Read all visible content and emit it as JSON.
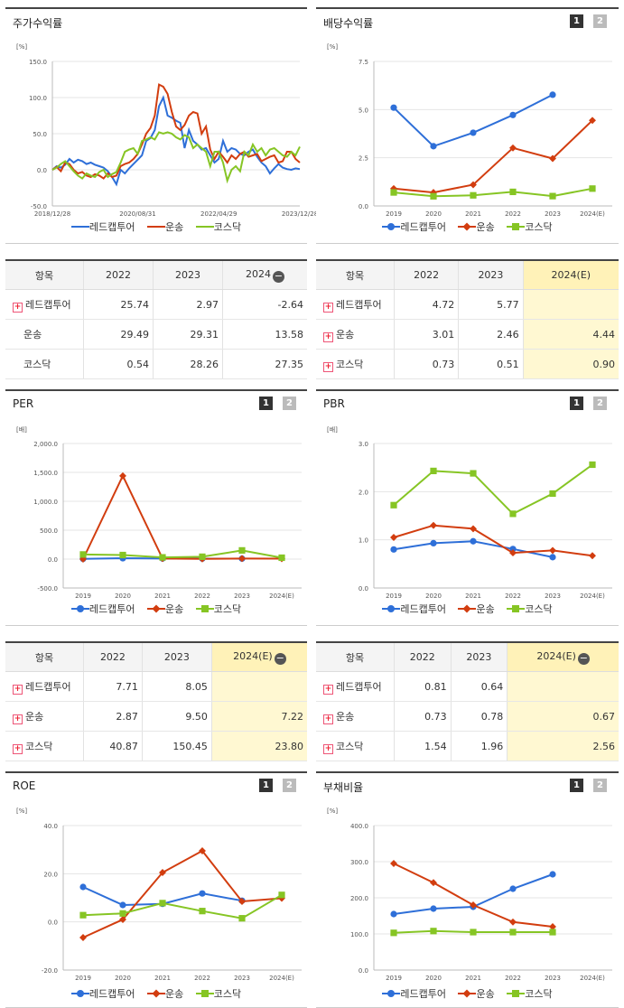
{
  "legend": {
    "red_cap": "레드캡투어",
    "transport": "운송",
    "kosdaq": "코스닥"
  },
  "colors": {
    "red_cap": "#2e6fd8",
    "transport": "#d23d0f",
    "kosdaq": "#86c524"
  },
  "stock_return": {
    "title": "주가수익률",
    "unit": "[%]",
    "chart_data": {
      "type": "line",
      "title": "주가수익률",
      "ylim": [
        -50,
        150
      ],
      "yticks": [
        "150.0",
        "100.0",
        "50.0",
        "0.0",
        "-50.0"
      ],
      "xticks": [
        "2018/12/28",
        "2020/08/31",
        "2022/04/29",
        "2023/12/28"
      ],
      "x_range": [
        "2018/12/28",
        "2023/12/28"
      ],
      "series": [
        {
          "key": "red_cap",
          "name": "레드캡투어",
          "values": [
            0,
            5,
            3,
            7,
            15,
            10,
            14,
            12,
            8,
            10,
            7,
            5,
            3,
            -2,
            -10,
            -20,
            0,
            -5,
            2,
            8,
            14,
            20,
            40,
            44,
            55,
            88,
            100,
            75,
            72,
            68,
            65,
            30,
            55,
            40,
            35,
            28,
            30,
            20,
            10,
            15,
            40,
            25,
            30,
            28,
            22,
            20,
            25,
            28,
            18,
            10,
            5,
            -5,
            2,
            8,
            3,
            1,
            0,
            2,
            1
          ]
        },
        {
          "key": "transport",
          "name": "운송",
          "values": [
            0,
            4,
            -2,
            10,
            8,
            0,
            -5,
            -3,
            -8,
            -10,
            -6,
            -8,
            -12,
            -5,
            -10,
            -8,
            5,
            8,
            10,
            15,
            22,
            35,
            50,
            58,
            75,
            118,
            115,
            105,
            80,
            60,
            55,
            62,
            75,
            80,
            78,
            50,
            60,
            28,
            15,
            25,
            18,
            10,
            20,
            15,
            22,
            25,
            18,
            20,
            22,
            12,
            15,
            18,
            20,
            10,
            12,
            25,
            25,
            15,
            10
          ]
        },
        {
          "key": "kosdaq",
          "name": "코스닥",
          "values": [
            0,
            3,
            8,
            12,
            5,
            -2,
            -8,
            -12,
            -5,
            -8,
            -10,
            -3,
            0,
            -10,
            -6,
            -3,
            10,
            25,
            28,
            30,
            22,
            40,
            42,
            45,
            42,
            52,
            50,
            52,
            50,
            45,
            42,
            48,
            45,
            30,
            35,
            30,
            25,
            5,
            25,
            25,
            10,
            -15,
            0,
            5,
            -2,
            25,
            20,
            35,
            25,
            30,
            20,
            28,
            30,
            25,
            20,
            18,
            25,
            20,
            32
          ]
        }
      ]
    }
  },
  "dividend": {
    "title": "배당수익률",
    "unit": "[%]",
    "page1": "1",
    "page2": "2",
    "chart_data": {
      "type": "line",
      "title": "배당수익률",
      "ylim": [
        0,
        7.5
      ],
      "yticks": [
        "7.5",
        "5.0",
        "2.5",
        "0.0"
      ],
      "categories": [
        "2019",
        "2020",
        "2021",
        "2022",
        "2023",
        "2024(E)"
      ],
      "series": [
        {
          "key": "red_cap",
          "name": "레드캡투어",
          "values": [
            5.1,
            3.1,
            3.8,
            4.72,
            5.77,
            null
          ]
        },
        {
          "key": "transport",
          "name": "운송",
          "values": [
            0.9,
            0.7,
            1.1,
            3.01,
            2.46,
            4.44
          ]
        },
        {
          "key": "kosdaq",
          "name": "코스닥",
          "values": [
            0.7,
            0.5,
            0.55,
            0.73,
            0.51,
            0.9
          ]
        }
      ]
    }
  },
  "table_stock": {
    "header": [
      "항목",
      "2022",
      "2023",
      "2024"
    ],
    "rows": [
      {
        "label": "레드캡투어",
        "plus": true,
        "values": [
          "25.74",
          "2.97",
          "-2.64"
        ]
      },
      {
        "label": "운송",
        "plus": false,
        "values": [
          "29.49",
          "29.31",
          "13.58"
        ]
      },
      {
        "label": "코스닥",
        "plus": false,
        "values": [
          "0.54",
          "28.26",
          "27.35"
        ]
      }
    ]
  },
  "table_dividend": {
    "header": [
      "항목",
      "2022",
      "2023",
      "2024(E)"
    ],
    "rows": [
      {
        "label": "레드캡투어",
        "plus": true,
        "values": [
          "4.72",
          "5.77",
          ""
        ]
      },
      {
        "label": "운송",
        "plus": true,
        "values": [
          "3.01",
          "2.46",
          "4.44"
        ]
      },
      {
        "label": "코스닥",
        "plus": true,
        "values": [
          "0.73",
          "0.51",
          "0.90"
        ]
      }
    ]
  },
  "per": {
    "title": "PER",
    "unit": "[배]",
    "page1": "1",
    "page2": "2",
    "chart_data": {
      "type": "line",
      "title": "PER",
      "ylim": [
        -500,
        2000
      ],
      "yticks": [
        "2,000.0",
        "1,500.0",
        "1,000.0",
        "500.0",
        "0.0",
        "-500.0"
      ],
      "categories": [
        "2019",
        "2020",
        "2021",
        "2022",
        "2023",
        "2024(E)"
      ],
      "series": [
        {
          "key": "red_cap",
          "name": "레드캡투어",
          "values": [
            5,
            15,
            10,
            7.71,
            8.05,
            null
          ]
        },
        {
          "key": "transport",
          "name": "운송",
          "values": [
            0,
            1440,
            10,
            2.87,
            9.5,
            7.22
          ]
        },
        {
          "key": "kosdaq",
          "name": "코스닥",
          "values": [
            80,
            70,
            30,
            40.87,
            150.45,
            23.8
          ]
        }
      ]
    }
  },
  "pbr": {
    "title": "PBR",
    "unit": "[배]",
    "page1": "1",
    "page2": "2",
    "chart_data": {
      "type": "line",
      "title": "PBR",
      "ylim": [
        0,
        3.0
      ],
      "yticks": [
        "3.0",
        "2.0",
        "1.0",
        "0.0"
      ],
      "categories": [
        "2019",
        "2020",
        "2021",
        "2022",
        "2023",
        "2024(E)"
      ],
      "series": [
        {
          "key": "red_cap",
          "name": "레드캡투어",
          "values": [
            0.8,
            0.93,
            0.97,
            0.81,
            0.64,
            null
          ]
        },
        {
          "key": "transport",
          "name": "운송",
          "values": [
            1.05,
            1.3,
            1.23,
            0.73,
            0.78,
            0.67
          ]
        },
        {
          "key": "kosdaq",
          "name": "코스닥",
          "values": [
            1.72,
            2.43,
            2.38,
            1.54,
            1.96,
            2.56
          ]
        }
      ]
    }
  },
  "table_per": {
    "header": [
      "항목",
      "2022",
      "2023",
      "2024(E)"
    ],
    "rows": [
      {
        "label": "레드캡투어",
        "plus": true,
        "values": [
          "7.71",
          "8.05",
          ""
        ]
      },
      {
        "label": "운송",
        "plus": true,
        "values": [
          "2.87",
          "9.50",
          "7.22"
        ]
      },
      {
        "label": "코스닥",
        "plus": true,
        "values": [
          "40.87",
          "150.45",
          "23.80"
        ]
      }
    ]
  },
  "table_pbr": {
    "header": [
      "항목",
      "2022",
      "2023",
      "2024(E)"
    ],
    "rows": [
      {
        "label": "레드캡투어",
        "plus": true,
        "values": [
          "0.81",
          "0.64",
          ""
        ]
      },
      {
        "label": "운송",
        "plus": true,
        "values": [
          "0.73",
          "0.78",
          "0.67"
        ]
      },
      {
        "label": "코스닥",
        "plus": true,
        "values": [
          "1.54",
          "1.96",
          "2.56"
        ]
      }
    ]
  },
  "roe": {
    "title": "ROE",
    "unit": "[%]",
    "page1": "1",
    "page2": "2",
    "chart_data": {
      "type": "line",
      "title": "ROE",
      "ylim": [
        -20,
        40
      ],
      "yticks": [
        "40.0",
        "20.0",
        "0.0",
        "-20.0"
      ],
      "categories": [
        "2019",
        "2020",
        "2021",
        "2022",
        "2023",
        "2024(E)"
      ],
      "series": [
        {
          "key": "red_cap",
          "name": "레드캡투어",
          "values": [
            14.5,
            7,
            7.5,
            11.8,
            8.8,
            null
          ]
        },
        {
          "key": "transport",
          "name": "운송",
          "values": [
            -6.5,
            1,
            20.5,
            29.5,
            8.5,
            9.8
          ]
        },
        {
          "key": "kosdaq",
          "name": "코스닥",
          "values": [
            2.8,
            3.5,
            7.8,
            4.5,
            1.5,
            11.2
          ]
        }
      ]
    }
  },
  "debt": {
    "title": "부채비율",
    "unit": "[%]",
    "page1": "1",
    "page2": "2",
    "chart_data": {
      "type": "line",
      "title": "부채비율",
      "ylim": [
        0,
        400
      ],
      "yticks": [
        "400.0",
        "300.0",
        "200.0",
        "100.0",
        "0.0"
      ],
      "categories": [
        "2019",
        "2020",
        "2021",
        "2022",
        "2023",
        "2024(E)"
      ],
      "series": [
        {
          "key": "red_cap",
          "name": "레드캡투어",
          "values": [
            155,
            170,
            175,
            225,
            265,
            null
          ]
        },
        {
          "key": "transport",
          "name": "운송",
          "values": [
            295,
            242,
            180,
            133,
            120,
            null
          ]
        },
        {
          "key": "kosdaq",
          "name": "코스닥",
          "values": [
            103,
            108,
            105,
            105,
            105,
            null
          ]
        }
      ]
    }
  }
}
